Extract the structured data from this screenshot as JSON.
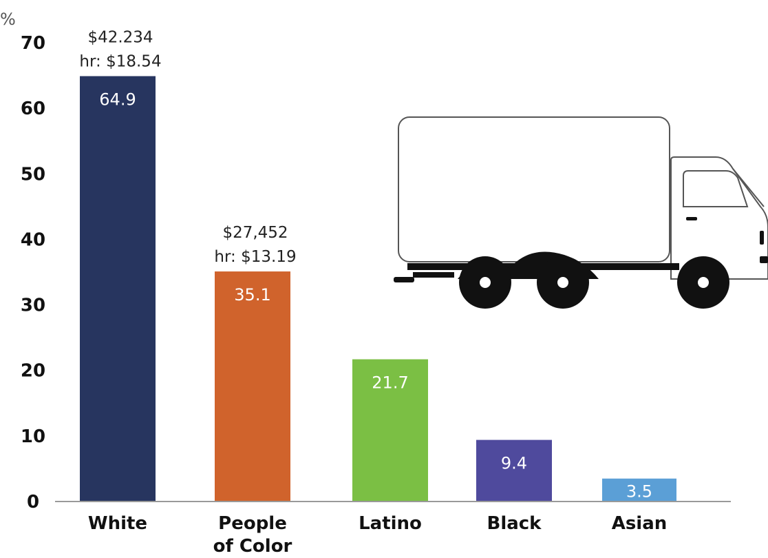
{
  "chart_data": {
    "type": "bar",
    "unit_label": "%",
    "categories": [
      "White",
      "People\nof Color",
      "Latino",
      "Black",
      "Asian"
    ],
    "values": [
      64.9,
      35.1,
      21.7,
      9.4,
      3.5
    ],
    "value_labels": [
      "64.9",
      "35.1",
      "21.7",
      "9.4",
      "3.5"
    ],
    "colors": [
      "#27355f",
      "#d0632c",
      "#7bbf44",
      "#4f4a9d",
      "#5b9fd6"
    ],
    "annotations": [
      {
        "category": "White",
        "lines": [
          "$42.234",
          "hr: $18.54"
        ]
      },
      {
        "category": "People\nof Color",
        "lines": [
          "$27,452",
          "hr: $13.19"
        ]
      }
    ],
    "yticks": [
      "0",
      "10",
      "20",
      "30",
      "40",
      "50",
      "60",
      "70"
    ],
    "ylim": [
      0,
      70
    ],
    "grid": false,
    "title": "",
    "xlabel": "",
    "ylabel": ""
  },
  "decoration": {
    "illustration": "delivery-truck-icon"
  }
}
